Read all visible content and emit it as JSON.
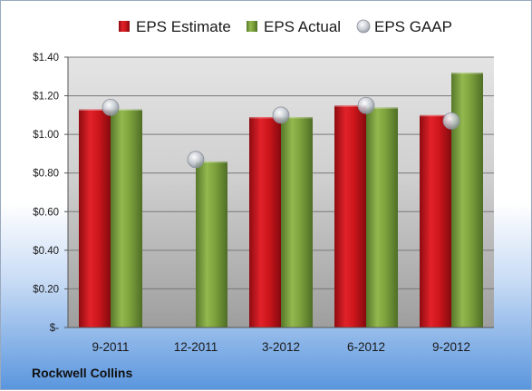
{
  "chart_data": {
    "type": "bar",
    "categories": [
      "9-2011",
      "12-2011",
      "3-2012",
      "6-2012",
      "9-2012"
    ],
    "series": [
      {
        "name": "EPS Estimate",
        "type": "bar",
        "color": "#c8141c",
        "values": [
          1.13,
          null,
          1.09,
          1.15,
          1.1
        ]
      },
      {
        "name": "EPS Actual",
        "type": "bar",
        "color": "#7ba039",
        "values": [
          1.13,
          0.86,
          1.09,
          1.14,
          1.32
        ]
      },
      {
        "name": "EPS GAAP",
        "type": "scatter",
        "color": "#b8bfc8",
        "values": [
          1.14,
          0.87,
          1.1,
          1.15,
          1.07
        ]
      }
    ],
    "y_ticks": [
      "$-",
      "$0.20",
      "$0.40",
      "$0.60",
      "$0.80",
      "$1.00",
      "$1.20",
      "$1.40"
    ],
    "ylim": [
      0,
      1.4
    ],
    "y_step": 0.2,
    "grid": true,
    "legend_position": "top"
  },
  "footer": {
    "company": "Rockwell Collins"
  }
}
